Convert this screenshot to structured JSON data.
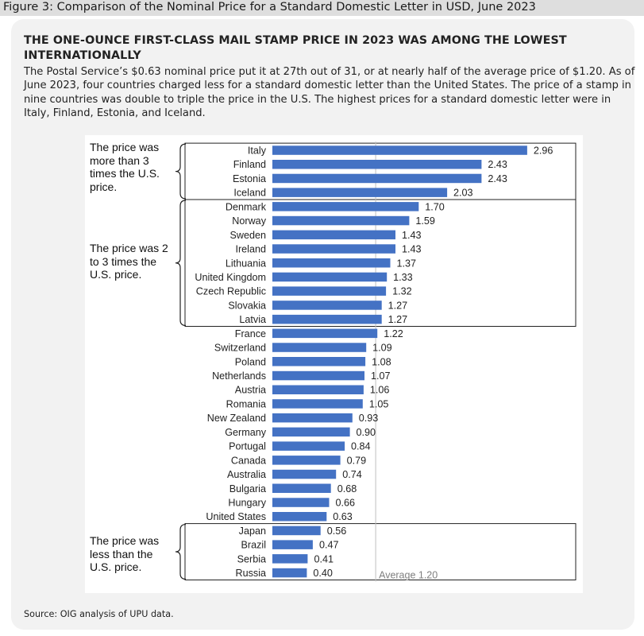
{
  "figure_label": "Figure 3: Comparison of the Nominal Price for a Standard Domestic Letter in USD, June 2023",
  "headline": "THE ONE-OUNCE FIRST-CLASS MAIL STAMP PRICE IN 2023 WAS AMONG THE LOWEST INTERNATIONALLY",
  "lede": "The Postal Service’s $0.63 nominal price put it at 27th out of 31, or at nearly half of the average price of $1.20. As of June 2023, four countries charged less for a standard domestic letter than the United States. The price of a stamp in nine countries was double to triple the price in the U.S. The highest prices for a standard domestic letter were in Italy, Finland, Estonia, and Iceland.",
  "group_labels": {
    "above_3x": "The price was more than 3 times the U.S. price.",
    "between_2x_3x": "The price was 2 to 3 times the U.S. price.",
    "below_us": "The price was less than the U.S. price."
  },
  "source": "Source: OIG analysis of UPU data.",
  "colors": {
    "bar": "#4472c4",
    "card": "#f2f2f2",
    "header": "#dedede"
  },
  "chart_data": {
    "type": "bar",
    "orientation": "horizontal",
    "categories": [
      "Italy",
      "Finland",
      "Estonia",
      "Iceland",
      "Denmark",
      "Norway",
      "Sweden",
      "Ireland",
      "Lithuania",
      "United Kingdom",
      "Czech Republic",
      "Slovakia",
      "Latvia",
      "France",
      "Switzerland",
      "Poland",
      "Netherlands",
      "Austria",
      "Romania",
      "New Zealand",
      "Germany",
      "Portugal",
      "Canada",
      "Australia",
      "Bulgaria",
      "Hungary",
      "United States",
      "Japan",
      "Brazil",
      "Serbia",
      "Russia"
    ],
    "values": [
      2.96,
      2.43,
      2.43,
      2.03,
      1.7,
      1.59,
      1.43,
      1.43,
      1.37,
      1.33,
      1.32,
      1.27,
      1.27,
      1.22,
      1.09,
      1.08,
      1.07,
      1.06,
      1.05,
      0.93,
      0.9,
      0.84,
      0.79,
      0.74,
      0.68,
      0.66,
      0.63,
      0.56,
      0.47,
      0.41,
      0.4
    ],
    "value_labels": [
      "2.96",
      "2.43",
      "2.43",
      "2.03",
      "1.70",
      "1.59",
      "1.43",
      "1.43",
      "1.37",
      "1.33",
      "1.32",
      "1.27",
      "1.27",
      "1.22",
      "1.09",
      "1.08",
      "1.07",
      "1.06",
      "1.05",
      "0.93",
      "0.90",
      "0.84",
      "0.79",
      "0.74",
      "0.68",
      "0.66",
      "0.63",
      "0.56",
      "0.47",
      "0.41",
      "0.40"
    ],
    "average": {
      "value": 1.2,
      "label": "Average 1.20"
    },
    "groups": [
      {
        "key": "above_3x",
        "start": 0,
        "end": 3
      },
      {
        "key": "between_2x_3x",
        "start": 4,
        "end": 12
      },
      {
        "key": "below_us",
        "start": 27,
        "end": 30
      }
    ],
    "xlim": [
      0,
      3.0
    ],
    "grid": false,
    "legend": "none"
  }
}
